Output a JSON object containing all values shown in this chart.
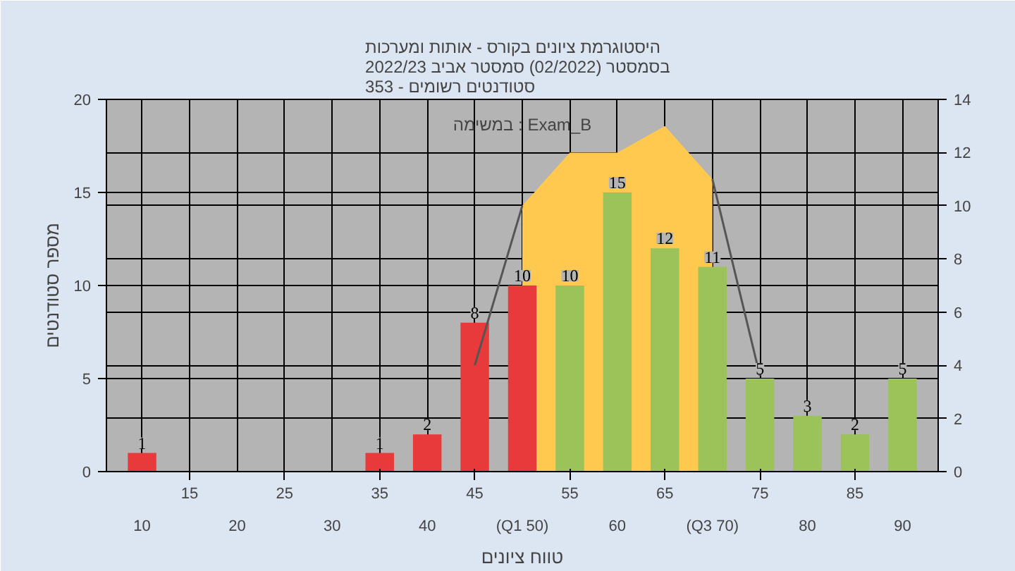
{
  "chart_data": {
    "type": "bar",
    "title": "היסטוגרמת ציונים בקורס - אותות ומערכות\nבסמסטר  (02/2022)  סמסטר אביב 2022/23\nסטודנטים רשומים - 353",
    "xlabel": "טווח ציונים",
    "ylabel": "מספר סטודנטים",
    "annotations": [
      "במשימה : Exam_B"
    ],
    "categories": [
      "10",
      "15",
      "20",
      "25",
      "30",
      "35",
      "40",
      "45",
      "(Q1 50)",
      "55",
      "60",
      "65",
      "(Q3 70)",
      "75",
      "80",
      "85",
      "90"
    ],
    "series": [
      {
        "type": "area",
        "axis": "y2",
        "color": "#ffc94f",
        "values": [
          null,
          null,
          null,
          null,
          null,
          null,
          null,
          null,
          10,
          12,
          12,
          13,
          11,
          null,
          null,
          null,
          null
        ]
      },
      {
        "values": [
          1,
          null,
          null,
          null,
          null,
          1,
          2,
          8,
          10,
          10,
          15,
          12,
          11,
          5,
          3,
          2,
          5
        ],
        "colors": [
          "#e83a3a",
          "#e83a3a",
          "#e83a3a",
          "#e83a3a",
          "#e83a3a",
          "#e83a3a",
          "#e83a3a",
          "#e83a3a",
          "#e83a3a",
          "#9cc25a",
          "#9cc25a",
          "#9cc25a",
          "#9cc25a",
          "#9cc25a",
          "#9cc25a",
          "#9cc25a",
          "#9cc25a"
        ],
        "data_labels": true
      },
      {
        "type": "line",
        "axis": "y2",
        "color": "#555555",
        "values": [
          null,
          null,
          null,
          null,
          null,
          null,
          null,
          4,
          10,
          null,
          null,
          null,
          11,
          3.6,
          null,
          null,
          null
        ]
      }
    ],
    "ylim": [
      0,
      20
    ],
    "yticks": [
      0,
      5,
      10,
      15,
      20
    ],
    "y2lim": [
      0,
      14
    ],
    "y2ticks": [
      0,
      2,
      4,
      6,
      8,
      10,
      12,
      14
    ],
    "grid": true
  }
}
